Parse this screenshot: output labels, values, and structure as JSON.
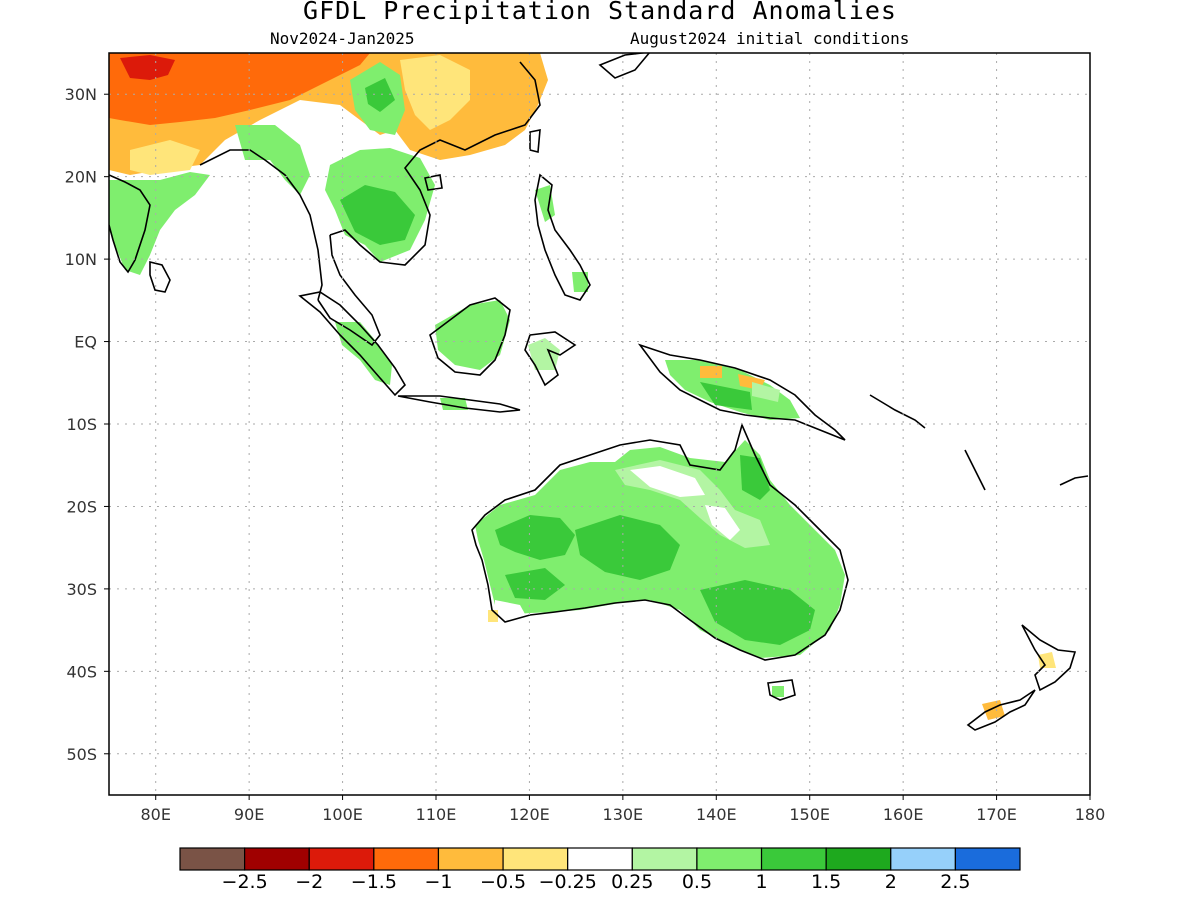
{
  "header": {
    "title": "GFDL Precipitation Standard Anomalies",
    "period": "Nov2024-Jan2025",
    "initial_conditions": "August2024 initial conditions"
  },
  "map": {
    "lon_range": [
      75,
      180
    ],
    "lat_range": [
      -55,
      35
    ],
    "lon_ticks": [
      {
        "value": 80,
        "label": "80E"
      },
      {
        "value": 90,
        "label": "90E"
      },
      {
        "value": 100,
        "label": "100E"
      },
      {
        "value": 110,
        "label": "110E"
      },
      {
        "value": 120,
        "label": "120E"
      },
      {
        "value": 130,
        "label": "130E"
      },
      {
        "value": 140,
        "label": "140E"
      },
      {
        "value": 150,
        "label": "150E"
      },
      {
        "value": 160,
        "label": "160E"
      },
      {
        "value": 170,
        "label": "170E"
      },
      {
        "value": 180,
        "label": "180"
      }
    ],
    "lat_ticks": [
      {
        "value": 30,
        "label": "30N"
      },
      {
        "value": 20,
        "label": "20N"
      },
      {
        "value": 10,
        "label": "10N"
      },
      {
        "value": 0,
        "label": "EQ"
      },
      {
        "value": -10,
        "label": "10S"
      },
      {
        "value": -20,
        "label": "20S"
      },
      {
        "value": -30,
        "label": "30S"
      },
      {
        "value": -40,
        "label": "40S"
      },
      {
        "value": -50,
        "label": "50S"
      }
    ],
    "grid": true
  },
  "colorbar": {
    "colors": [
      "#7a5346",
      "#a00000",
      "#dc1a0a",
      "#ff6a0a",
      "#ffbb3c",
      "#ffe57a",
      "#ffffff",
      "#b3f5a3",
      "#7fee6e",
      "#3ac93a",
      "#1ea91e",
      "#96d0fa",
      "#1a6cdc"
    ],
    "labels": [
      "−2.5",
      "−2",
      "−1.5",
      "−1",
      "−0.5",
      "−0.25",
      "0.25",
      "0.5",
      "1",
      "1.5",
      "2",
      "2.5"
    ]
  }
}
